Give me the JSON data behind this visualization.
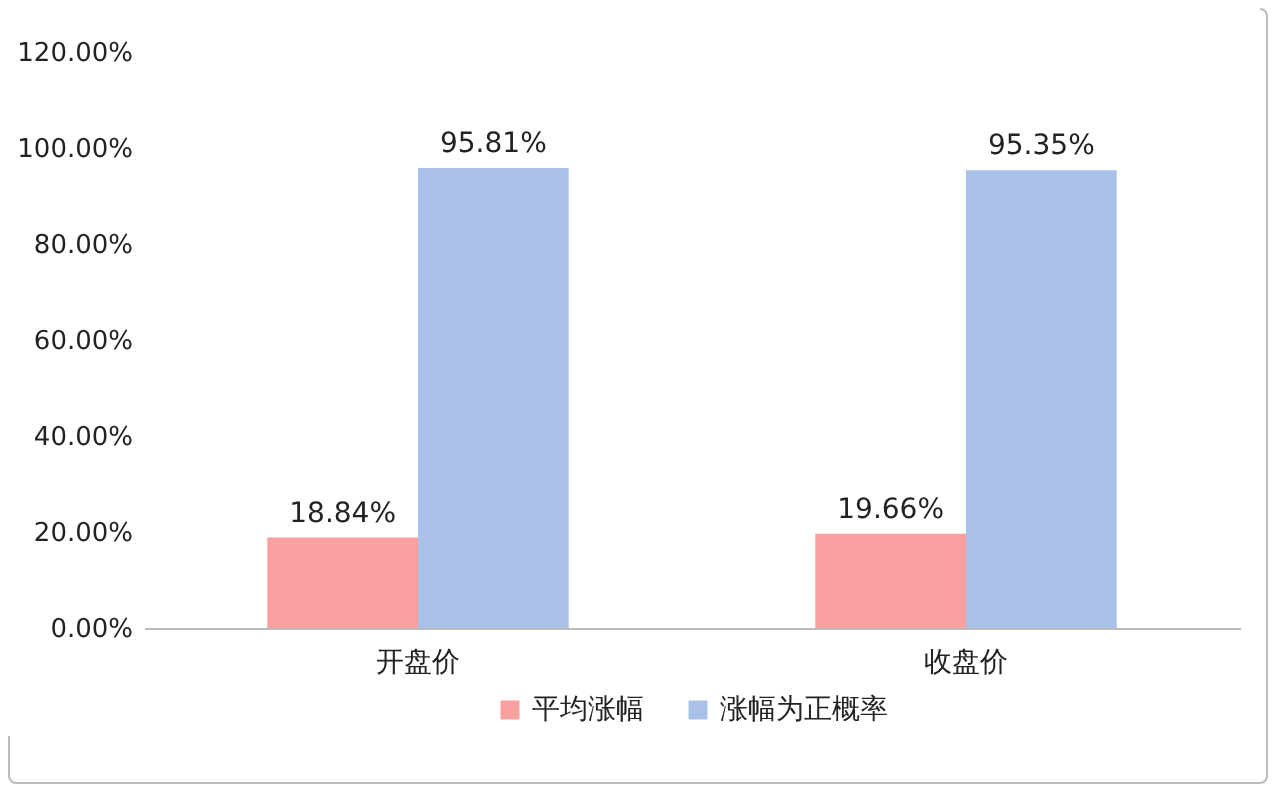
{
  "chart_data": {
    "type": "bar",
    "categories": [
      "开盘价",
      "收盘价"
    ],
    "series": [
      {
        "name": "平均涨幅",
        "color": "#f8a0a0",
        "values": [
          18.84,
          19.66
        ],
        "value_labels": [
          "18.84%",
          "19.66%"
        ]
      },
      {
        "name": "涨幅为正概率",
        "color": "#a9c0e8",
        "values": [
          95.81,
          95.35
        ],
        "value_labels": [
          "95.81%",
          "95.35%"
        ]
      }
    ],
    "ylim": [
      0,
      120
    ],
    "yticks": [
      {
        "value": 0,
        "label": "0.00%"
      },
      {
        "value": 20,
        "label": "20.00%"
      },
      {
        "value": 40,
        "label": "40.00%"
      },
      {
        "value": 60,
        "label": "60.00%"
      },
      {
        "value": 80,
        "label": "80.00%"
      },
      {
        "value": 100,
        "label": "100.00%"
      },
      {
        "value": 120,
        "label": "120.00%"
      }
    ],
    "grid": false,
    "legend": "bottom"
  }
}
